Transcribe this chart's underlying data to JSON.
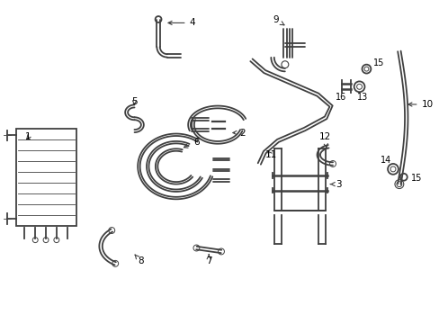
{
  "background_color": "#ffffff",
  "line_color": "#404040",
  "label_color": "#000000",
  "label_fontsize": 7.5,
  "line_width": 1.3,
  "fig_width": 4.89,
  "fig_height": 3.6,
  "dpi": 100
}
